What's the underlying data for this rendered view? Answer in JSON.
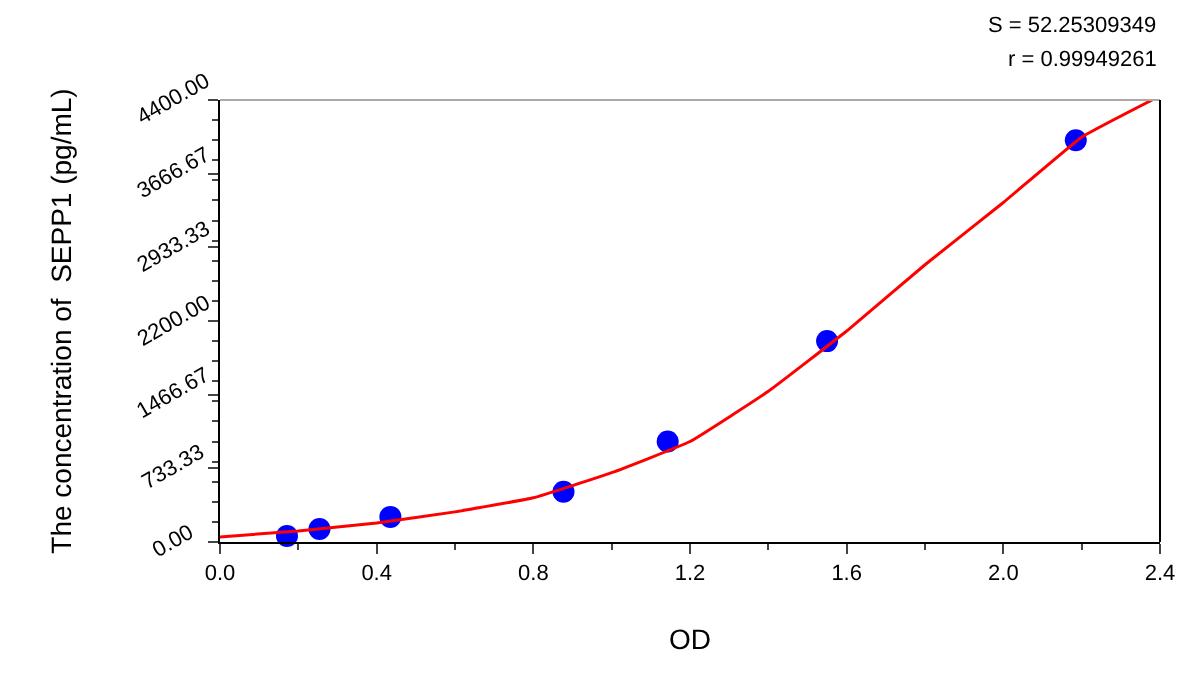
{
  "chart_data": {
    "type": "scatter",
    "xlabel": "OD",
    "ylabel": "The concentration of  SEPP1 (pg/mL)",
    "annotations": [
      "S = 52.25309349",
      "r = 0.99949261"
    ],
    "series": [
      {
        "color": "#0000ff",
        "marker": "circle",
        "x": [
          0.171,
          0.254,
          0.435,
          0.877,
          1.143,
          1.55,
          2.185
        ],
        "values": [
          60,
          130,
          250,
          500,
          1000,
          2000,
          4000
        ]
      },
      {
        "type": "line",
        "color": "#ff0000",
        "marker": "none",
        "line_style": "solid",
        "x": [
          0.0,
          0.2,
          0.4,
          0.6,
          0.8,
          1.0,
          1.2,
          1.4,
          1.6,
          1.8,
          2.0,
          2.2,
          2.38
        ],
        "values": [
          50,
          110,
          190,
          300,
          440,
          690,
          1000,
          1500,
          2100,
          2760,
          3380,
          4030,
          4400
        ]
      }
    ],
    "xlim": [
      0,
      2.4
    ],
    "xticks": [
      {
        "value": 0,
        "label": "0.0"
      },
      0.4,
      0.8,
      1.2,
      1.6,
      {
        "value": 2,
        "label": "2.0"
      },
      2.4
    ],
    "ylim": [
      0,
      4400
    ],
    "yticks": [
      {
        "value": 0,
        "label": "0.00"
      },
      733.33,
      1466.67,
      {
        "value": 2200,
        "label": "2200.00"
      },
      2933.33,
      3666.67,
      {
        "value": 4400,
        "label": "4400.00"
      }
    ],
    "tick_labels": true
  }
}
